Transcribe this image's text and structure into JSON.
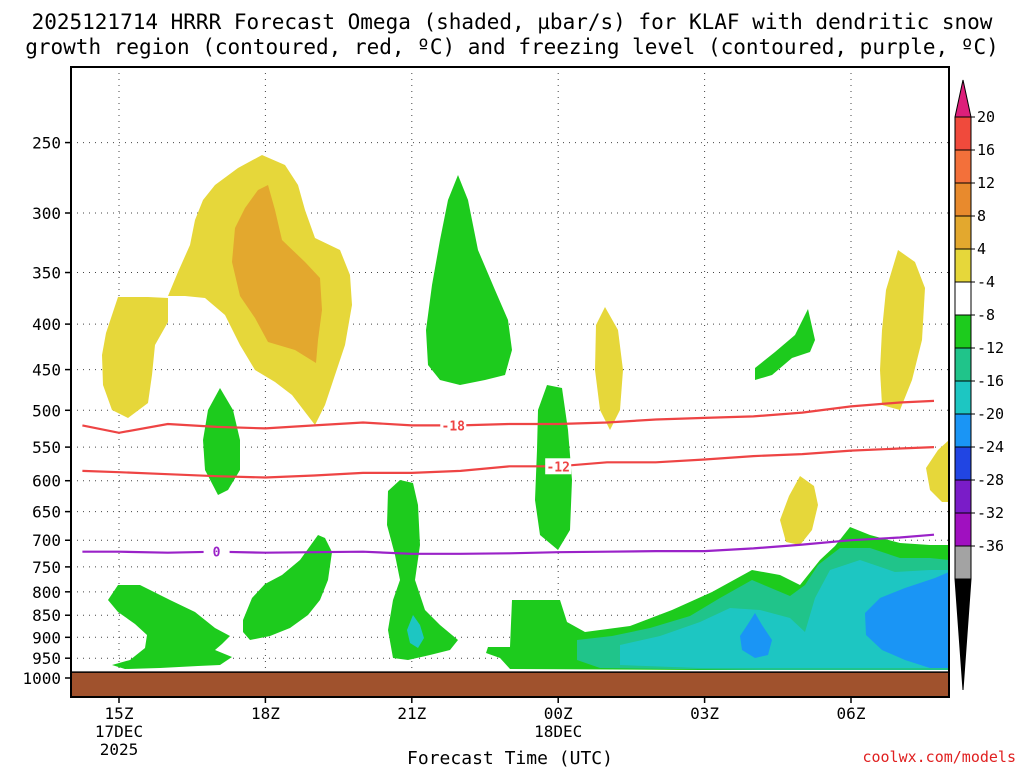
{
  "title_line1": "2025121714 HRRR Forecast Omega (shaded, µbar/s) for KLAF with dendritic snow",
  "title_line2": "growth region (contoured, red, ºC) and freezing level (contoured, purple, ºC)",
  "credit": "coolwx.com/models",
  "chart_data": {
    "type": "time-height contour",
    "xlabel": "Forecast Time (UTC)",
    "ylabel": "",
    "x_ticks": [
      {
        "label": "15Z",
        "sub1": "17DEC",
        "sub2": "2025",
        "hour": 0
      },
      {
        "label": "18Z",
        "sub1": "",
        "sub2": "",
        "hour": 3
      },
      {
        "label": "21Z",
        "sub1": "",
        "sub2": "",
        "hour": 6
      },
      {
        "label": "00Z",
        "sub1": "18DEC",
        "sub2": "",
        "hour": 9
      },
      {
        "label": "03Z",
        "sub1": "",
        "sub2": "",
        "hour": 12
      },
      {
        "label": "06Z",
        "sub1": "",
        "sub2": "",
        "hour": 15
      }
    ],
    "xlim_hours": [
      -0.75,
      16.7
    ],
    "y_ticks": [
      250,
      300,
      350,
      400,
      450,
      500,
      550,
      600,
      650,
      700,
      750,
      800,
      850,
      900,
      950,
      1000
    ],
    "ylim_hpa": [
      1000,
      200
    ],
    "y_scale": "log-pressure, inverted",
    "ground_level_hpa": 985,
    "colorbar": {
      "labels": [
        "20",
        "16",
        "12",
        "8",
        "4",
        "-4",
        "-8",
        "-12",
        "-16",
        "-20",
        "-24",
        "-28",
        "-32",
        "-36"
      ],
      "colors": [
        "#dd1f7a",
        "#f04a3c",
        "#f3703a",
        "#e88a2d",
        "#e3a82e",
        "#e6d73a",
        "#ffffff",
        "#1dcb1d",
        "#20c48a",
        "#1dc6c2",
        "#1a95f5",
        "#2145e3",
        "#7a1cc8",
        "#a010c0",
        "#a3a3a3",
        "#000000"
      ]
    },
    "contours": [
      {
        "name": "-18",
        "color": "#ee4444",
        "unit": "ºC",
        "label_hour": 6.85,
        "points": [
          [
            -0.75,
            520
          ],
          [
            0,
            530
          ],
          [
            1,
            518
          ],
          [
            2,
            522
          ],
          [
            3,
            524
          ],
          [
            4,
            520
          ],
          [
            5,
            516
          ],
          [
            6,
            520
          ],
          [
            7,
            520
          ],
          [
            8,
            518
          ],
          [
            9,
            518
          ],
          [
            10,
            516
          ],
          [
            11,
            512
          ],
          [
            12,
            510
          ],
          [
            13,
            508
          ],
          [
            14,
            503
          ],
          [
            15,
            495
          ],
          [
            16,
            490
          ],
          [
            16.7,
            488
          ]
        ]
      },
      {
        "name": "-12",
        "color": "#ee4444",
        "unit": "ºC",
        "label_hour": 9.0,
        "points": [
          [
            -0.75,
            585
          ],
          [
            0,
            587
          ],
          [
            1,
            590
          ],
          [
            2,
            593
          ],
          [
            3,
            595
          ],
          [
            4,
            592
          ],
          [
            5,
            588
          ],
          [
            6,
            588
          ],
          [
            7,
            585
          ],
          [
            8,
            578
          ],
          [
            9,
            578
          ],
          [
            10,
            572
          ],
          [
            11,
            572
          ],
          [
            12,
            568
          ],
          [
            13,
            563
          ],
          [
            14,
            560
          ],
          [
            15,
            555
          ],
          [
            16,
            552
          ],
          [
            16.7,
            550
          ]
        ]
      },
      {
        "name": "0",
        "color": "#9a22c8",
        "unit": "ºC",
        "label_hour": 2.0,
        "points": [
          [
            -0.75,
            721
          ],
          [
            0,
            721
          ],
          [
            1,
            723
          ],
          [
            2,
            721
          ],
          [
            3,
            723
          ],
          [
            4,
            722
          ],
          [
            5,
            721
          ],
          [
            6,
            725
          ],
          [
            7,
            725
          ],
          [
            8,
            724
          ],
          [
            9,
            722
          ],
          [
            10,
            721
          ],
          [
            11,
            720
          ],
          [
            12,
            720
          ],
          [
            13,
            715
          ],
          [
            14,
            708
          ],
          [
            15,
            700
          ],
          [
            16,
            695
          ],
          [
            16.7,
            690
          ]
        ]
      }
    ]
  }
}
